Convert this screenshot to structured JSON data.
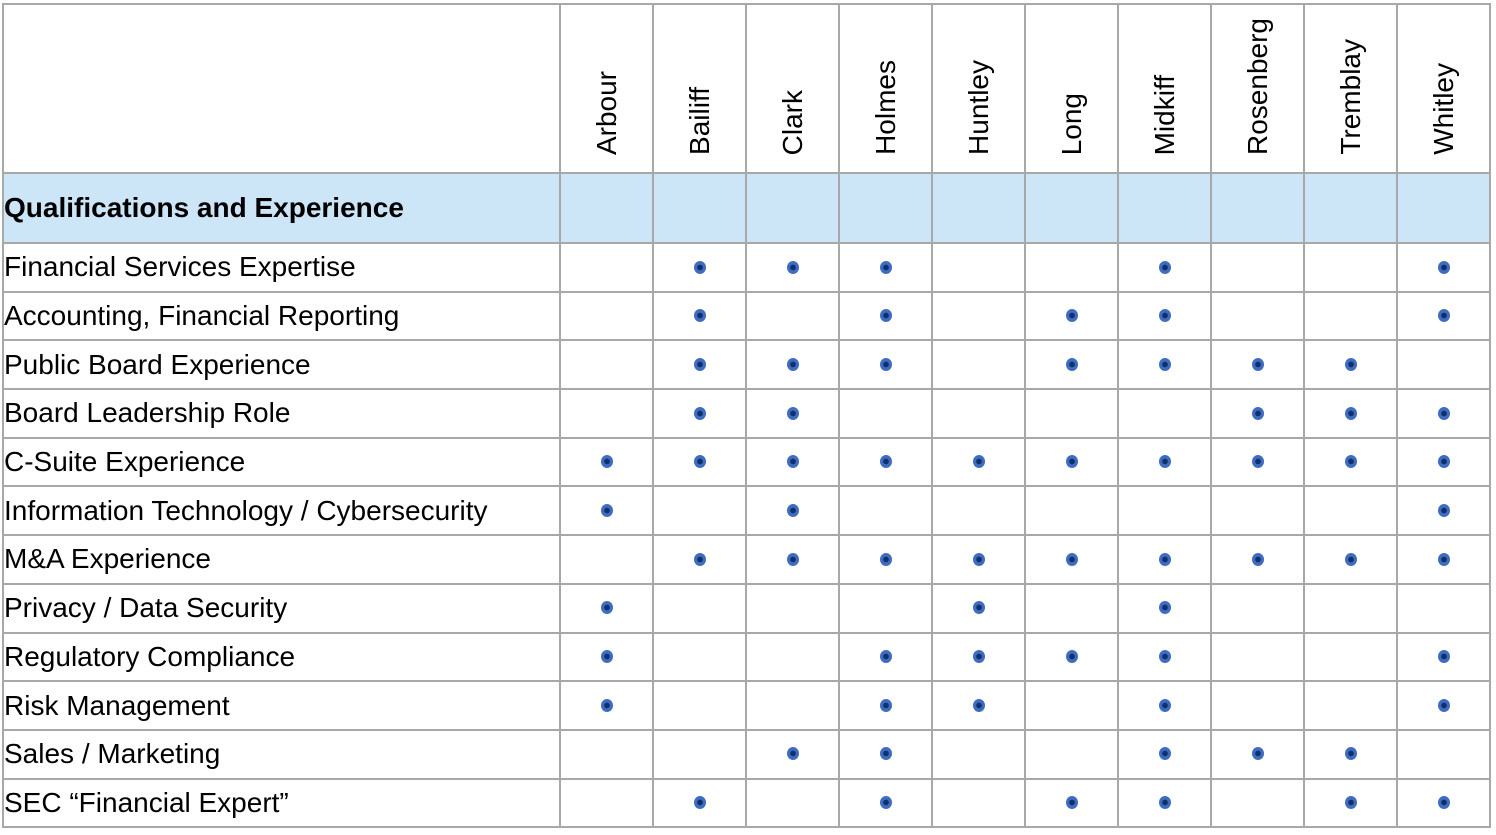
{
  "table": {
    "section_label": "Qualifications and Experience",
    "columns": [
      "Arbour",
      "Bailiff",
      "Clark",
      "Holmes",
      "Huntley",
      "Long",
      "Midkiff",
      "Rosenberg",
      "Tremblay",
      "Whitley"
    ],
    "rows": [
      {
        "label": "Financial Services Expertise",
        "marks": [
          0,
          1,
          1,
          1,
          0,
          0,
          1,
          0,
          0,
          1
        ]
      },
      {
        "label": "Accounting, Financial Reporting",
        "marks": [
          0,
          1,
          0,
          1,
          0,
          1,
          1,
          0,
          0,
          1
        ]
      },
      {
        "label": "Public Board Experience",
        "marks": [
          0,
          1,
          1,
          1,
          0,
          1,
          1,
          1,
          1,
          0
        ]
      },
      {
        "label": "Board Leadership Role",
        "marks": [
          0,
          1,
          1,
          0,
          0,
          0,
          0,
          1,
          1,
          1
        ]
      },
      {
        "label": "C-Suite Experience",
        "marks": [
          1,
          1,
          1,
          1,
          1,
          1,
          1,
          1,
          1,
          1
        ]
      },
      {
        "label": "Information Technology / Cybersecurity",
        "marks": [
          1,
          0,
          1,
          0,
          0,
          0,
          0,
          0,
          0,
          1
        ]
      },
      {
        "label": "M&A Experience",
        "marks": [
          0,
          1,
          1,
          1,
          1,
          1,
          1,
          1,
          1,
          1
        ]
      },
      {
        "label": "Privacy / Data Security",
        "marks": [
          1,
          0,
          0,
          0,
          1,
          0,
          1,
          0,
          0,
          0
        ]
      },
      {
        "label": "Regulatory Compliance",
        "marks": [
          1,
          0,
          0,
          1,
          1,
          1,
          1,
          0,
          0,
          1
        ]
      },
      {
        "label": "Risk Management",
        "marks": [
          1,
          0,
          0,
          1,
          1,
          0,
          1,
          0,
          0,
          1
        ]
      },
      {
        "label": "Sales / Marketing",
        "marks": [
          0,
          0,
          1,
          1,
          0,
          0,
          1,
          1,
          1,
          0
        ]
      },
      {
        "label": "SEC “Financial Expert”",
        "marks": [
          0,
          1,
          0,
          1,
          0,
          1,
          1,
          0,
          1,
          1
        ]
      }
    ]
  },
  "icons": {
    "mark": "qualification-dot-icon"
  },
  "colors": {
    "border": "#A8A8A8",
    "header_bg": "#CDE6F7",
    "dot_outer": "#3E6CC0",
    "dot_inner": "#10306B"
  }
}
